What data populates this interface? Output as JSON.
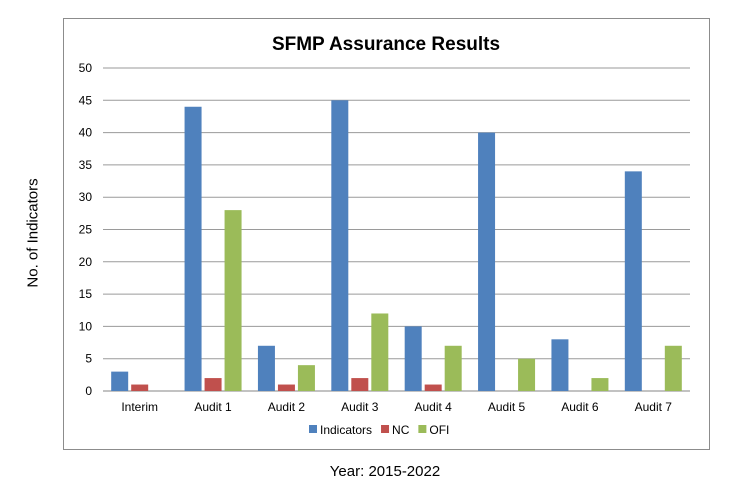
{
  "chart_data": {
    "type": "bar",
    "title": "SFMP Assurance Results",
    "xlabel": "Year: 2015-2022",
    "ylabel": "No. of Indicators",
    "categories": [
      "Interim",
      "Audit 1",
      "Audit 2",
      "Audit 3",
      "Audit 4",
      "Audit 5",
      "Audit 6",
      "Audit 7"
    ],
    "series": [
      {
        "name": "Indicators",
        "color": "#4f81bd",
        "values": [
          3,
          44,
          7,
          45,
          10,
          40,
          8,
          34
        ]
      },
      {
        "name": "NC",
        "color": "#c0504d",
        "values": [
          1,
          2,
          1,
          2,
          1,
          0,
          0,
          0
        ]
      },
      {
        "name": "OFI",
        "color": "#9bbb59",
        "values": [
          0,
          28,
          4,
          12,
          7,
          5,
          2,
          7
        ]
      }
    ],
    "ylim": [
      0,
      50
    ],
    "yticks": [
      0,
      5,
      10,
      15,
      20,
      25,
      30,
      35,
      40,
      45,
      50
    ],
    "grid": true,
    "legend_position": "bottom"
  }
}
